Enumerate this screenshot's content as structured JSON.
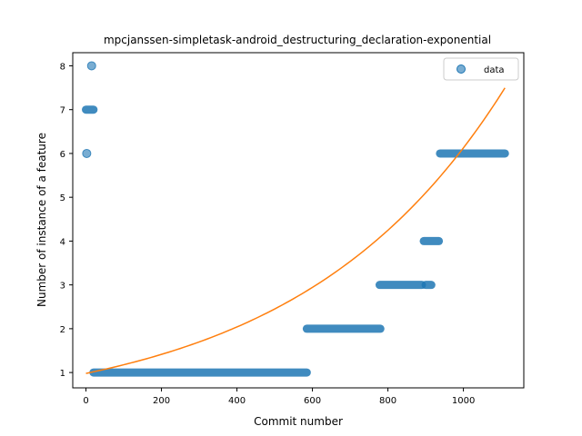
{
  "chart_data": {
    "type": "scatter",
    "title": "mpcjanssen-simpletask-android_destructuring_declaration-exponential",
    "xlabel": "Commit number",
    "ylabel": "Number of instance of a feature",
    "xlim": [
      -35,
      1160
    ],
    "ylim": [
      0.65,
      8.3
    ],
    "xticks": [
      0,
      200,
      400,
      600,
      800,
      1000
    ],
    "yticks": [
      1,
      2,
      3,
      4,
      5,
      6,
      7,
      8
    ],
    "grid": false,
    "legend": {
      "position": "top-right",
      "entries": [
        "data"
      ]
    },
    "colors": {
      "data": "#1f77b4",
      "fit": "#ff7f0e"
    },
    "series": [
      {
        "name": "data",
        "kind": "scatter",
        "segments": [
          {
            "x_start": 0,
            "x_end": 20,
            "y": 7
          },
          {
            "x_start": 20,
            "x_end": 585,
            "y": 1
          },
          {
            "x_start": 585,
            "x_end": 780,
            "y": 2
          },
          {
            "x_start": 778,
            "x_end": 890,
            "y": 3
          },
          {
            "x_start": 895,
            "x_end": 935,
            "y": 4
          },
          {
            "x_start": 900,
            "x_end": 915,
            "y": 3
          },
          {
            "x_start": 938,
            "x_end": 1110,
            "y": 6
          }
        ],
        "points": [
          {
            "x": 2,
            "y": 6
          },
          {
            "x": 15,
            "y": 8
          }
        ]
      },
      {
        "kind": "line",
        "model": "exponential",
        "a": 0.98,
        "b": 0.001833,
        "x_range": [
          0,
          1110
        ]
      }
    ]
  }
}
